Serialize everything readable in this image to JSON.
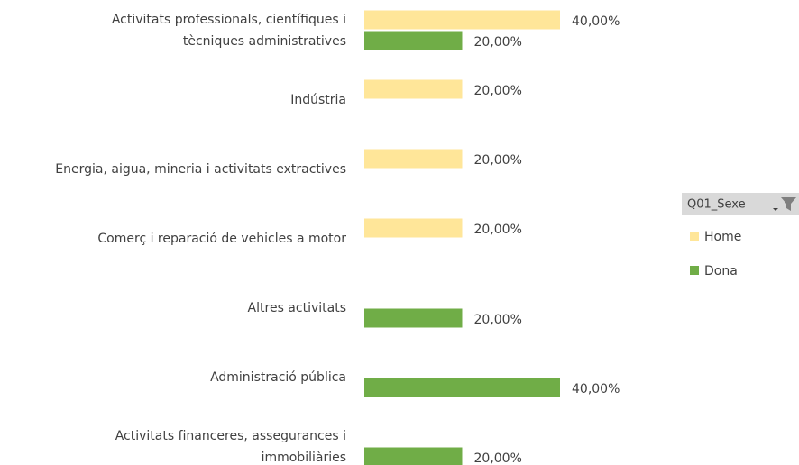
{
  "chart_data": {
    "type": "bar",
    "orientation": "horizontal",
    "categories": [
      "Activitats professionals, científiques i\ntècniques administratives",
      "Indústria",
      "Energia, aigua, mineria i activitats extractives",
      "Comerç i reparació de vehicles a motor",
      "Altres activitats",
      "Administració pública",
      "Activitats financeres, assegurances i\nimmobiliàries"
    ],
    "series": [
      {
        "name": "Home",
        "color": "#ffe699",
        "values": [
          40,
          20,
          20,
          20,
          null,
          null,
          null
        ],
        "value_labels": [
          "40,00%",
          "20,00%",
          "20,00%",
          "20,00%",
          null,
          null,
          null
        ]
      },
      {
        "name": "Dona",
        "color": "#70ad47",
        "values": [
          20,
          null,
          null,
          null,
          20,
          40,
          20
        ],
        "value_labels": [
          "20,00%",
          null,
          null,
          null,
          "20,00%",
          "40,00%",
          "20,00%"
        ]
      }
    ],
    "legend": {
      "title": "Q01_Sexe",
      "position": "right"
    }
  }
}
